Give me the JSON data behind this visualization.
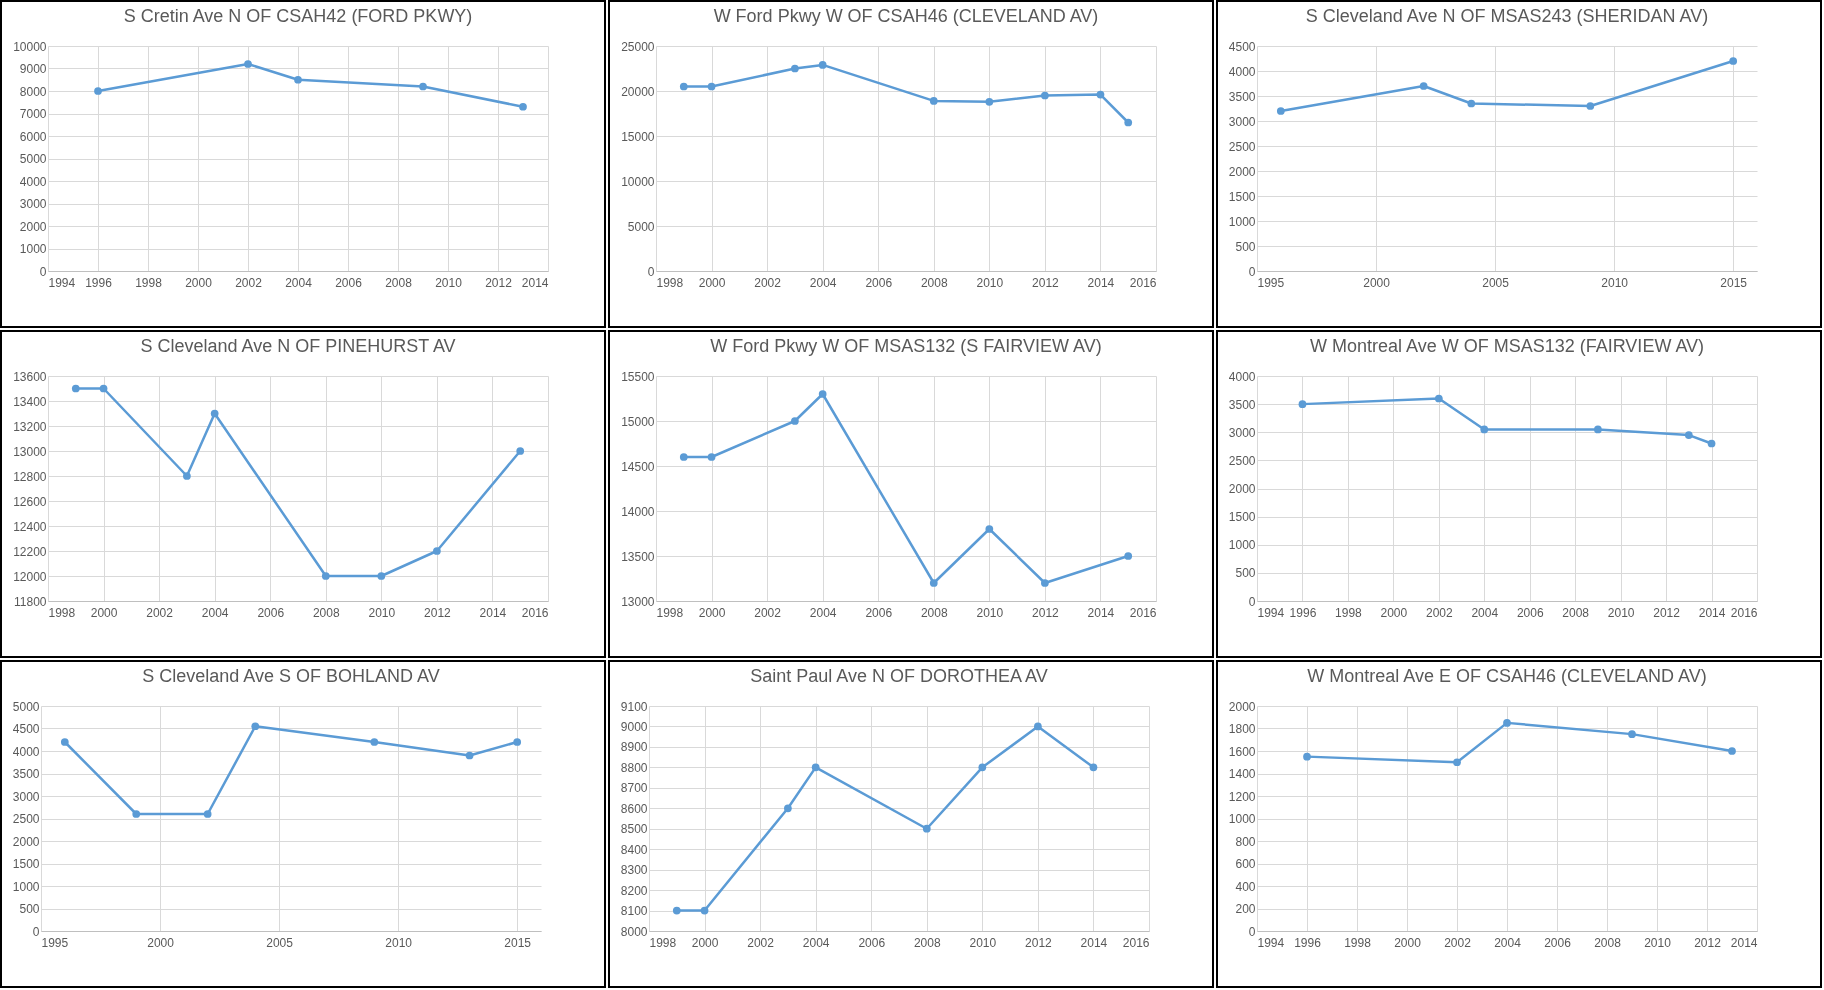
{
  "chart_data": [
    {
      "type": "line",
      "title": "S Cretin Ave N OF CSAH42 (FORD PKWY)",
      "x": [
        1996,
        2002,
        2004,
        2009,
        2013
      ],
      "series": [
        {
          "color": "#5b9bd5",
          "values": [
            8000,
            9200,
            8500,
            8200,
            7300
          ]
        }
      ],
      "xlim": [
        1994,
        2014
      ],
      "xticks": [
        1994,
        1996,
        1998,
        2000,
        2002,
        2004,
        2006,
        2008,
        2010,
        2012,
        2014
      ],
      "ylim": [
        0,
        10000
      ],
      "yticks": [
        0,
        1000,
        2000,
        3000,
        4000,
        5000,
        6000,
        7000,
        8000,
        9000,
        10000
      ],
      "grid": true,
      "marker": "circle"
    },
    {
      "type": "line",
      "title": "W Ford Pkwy W OF CSAH46 (CLEVELAND AV)",
      "x": [
        1999,
        2000,
        2003,
        2004,
        2008,
        2010,
        2012,
        2014,
        2015
      ],
      "series": [
        {
          "color": "#5b9bd5",
          "values": [
            20500,
            20500,
            22500,
            22900,
            18900,
            18800,
            19500,
            19600,
            16500
          ]
        }
      ],
      "xlim": [
        1998,
        2016
      ],
      "xticks": [
        1998,
        2000,
        2002,
        2004,
        2006,
        2008,
        2010,
        2012,
        2014,
        2016
      ],
      "ylim": [
        0,
        25000
      ],
      "yticks": [
        0,
        5000,
        10000,
        15000,
        20000,
        25000
      ],
      "grid": true,
      "marker": "circle"
    },
    {
      "type": "line",
      "title": "S Cleveland Ave N OF MSAS243 (SHERIDAN AV)",
      "x": [
        1996,
        2002,
        2004,
        2009,
        2015
      ],
      "series": [
        {
          "color": "#5b9bd5",
          "values": [
            3200,
            3700,
            3350,
            3300,
            4200
          ]
        }
      ],
      "xlim": [
        1995,
        2016
      ],
      "xticks": [
        1995,
        2000,
        2005,
        2010,
        2015
      ],
      "ylim": [
        0,
        4500
      ],
      "yticks": [
        0,
        500,
        1000,
        1500,
        2000,
        2500,
        3000,
        3500,
        4000,
        4500
      ],
      "grid": true,
      "marker": "circle"
    },
    {
      "type": "line",
      "title": "S Cleveland Ave N OF PINEHURST AV",
      "x": [
        1999,
        2000,
        2003,
        2004,
        2008,
        2010,
        2012,
        2015
      ],
      "series": [
        {
          "color": "#5b9bd5",
          "values": [
            13500,
            13500,
            12800,
            13300,
            12000,
            12000,
            12200,
            13000
          ]
        }
      ],
      "xlim": [
        1998,
        2016
      ],
      "xticks": [
        1998,
        2000,
        2002,
        2004,
        2006,
        2008,
        2010,
        2012,
        2014,
        2016
      ],
      "ylim": [
        11800,
        13600
      ],
      "yticks": [
        11800,
        12000,
        12200,
        12400,
        12600,
        12800,
        13000,
        13200,
        13400,
        13600
      ],
      "grid": true,
      "marker": "circle"
    },
    {
      "type": "line",
      "title": "W Ford Pkwy W OF MSAS132 (S FAIRVIEW AV)",
      "x": [
        1999,
        2000,
        2003,
        2004,
        2008,
        2010,
        2012,
        2015
      ],
      "series": [
        {
          "color": "#5b9bd5",
          "values": [
            14600,
            14600,
            15000,
            15300,
            13200,
            13800,
            13200,
            13500
          ]
        }
      ],
      "xlim": [
        1998,
        2016
      ],
      "xticks": [
        1998,
        2000,
        2002,
        2004,
        2006,
        2008,
        2010,
        2012,
        2014,
        2016
      ],
      "ylim": [
        13000,
        15500
      ],
      "yticks": [
        13000,
        13500,
        14000,
        14500,
        15000,
        15500
      ],
      "grid": true,
      "marker": "circle"
    },
    {
      "type": "line",
      "title": "W Montreal Ave W OF MSAS132 (FAIRVIEW AV)",
      "x": [
        1996,
        2002,
        2004,
        2009,
        2013,
        2014
      ],
      "series": [
        {
          "color": "#5b9bd5",
          "values": [
            3500,
            3600,
            3050,
            3050,
            2950,
            2800
          ]
        }
      ],
      "xlim": [
        1994,
        2016
      ],
      "xticks": [
        1994,
        1996,
        1998,
        2000,
        2002,
        2004,
        2006,
        2008,
        2010,
        2012,
        2014,
        2016
      ],
      "ylim": [
        0,
        4000
      ],
      "yticks": [
        0,
        500,
        1000,
        1500,
        2000,
        2500,
        3000,
        3500,
        4000
      ],
      "grid": true,
      "marker": "circle"
    },
    {
      "type": "line",
      "title": "S Cleveland Ave S OF BOHLAND AV",
      "x": [
        1996,
        1999,
        2002,
        2004,
        2009,
        2013,
        2015
      ],
      "series": [
        {
          "color": "#5b9bd5",
          "values": [
            4200,
            2600,
            2600,
            4550,
            4200,
            3900,
            4200
          ]
        }
      ],
      "xlim": [
        1995,
        2016
      ],
      "xticks": [
        1995,
        2000,
        2005,
        2010,
        2015
      ],
      "ylim": [
        0,
        5000
      ],
      "yticks": [
        0,
        500,
        1000,
        1500,
        2000,
        2500,
        3000,
        3500,
        4000,
        4500,
        5000
      ],
      "grid": true,
      "marker": "circle"
    },
    {
      "type": "line",
      "title": "Saint Paul Ave N OF DOROTHEA AV",
      "x": [
        1999,
        2000,
        2003,
        2004,
        2008,
        2010,
        2012,
        2014
      ],
      "series": [
        {
          "color": "#5b9bd5",
          "values": [
            8100,
            8100,
            8600,
            8800,
            8500,
            8800,
            9000,
            8800
          ]
        }
      ],
      "xlim": [
        1998,
        2016
      ],
      "xticks": [
        1998,
        2000,
        2002,
        2004,
        2006,
        2008,
        2010,
        2012,
        2014,
        2016
      ],
      "ylim": [
        8000,
        9100
      ],
      "yticks": [
        8000,
        8100,
        8200,
        8300,
        8400,
        8500,
        8600,
        8700,
        8800,
        8900,
        9000,
        9100
      ],
      "grid": true,
      "marker": "circle"
    },
    {
      "type": "line",
      "title": "W Montreal Ave E OF CSAH46 (CLEVELAND AV)",
      "x": [
        1996,
        2002,
        2004,
        2009,
        2013
      ],
      "series": [
        {
          "color": "#5b9bd5",
          "values": [
            1550,
            1500,
            1850,
            1750,
            1600
          ]
        }
      ],
      "xlim": [
        1994,
        2014
      ],
      "xticks": [
        1994,
        1996,
        1998,
        2000,
        2002,
        2004,
        2006,
        2008,
        2010,
        2012,
        2014
      ],
      "ylim": [
        0,
        2000
      ],
      "yticks": [
        0,
        200,
        400,
        600,
        800,
        1000,
        1200,
        1400,
        1600,
        1800,
        2000
      ],
      "grid": true,
      "marker": "circle"
    }
  ]
}
